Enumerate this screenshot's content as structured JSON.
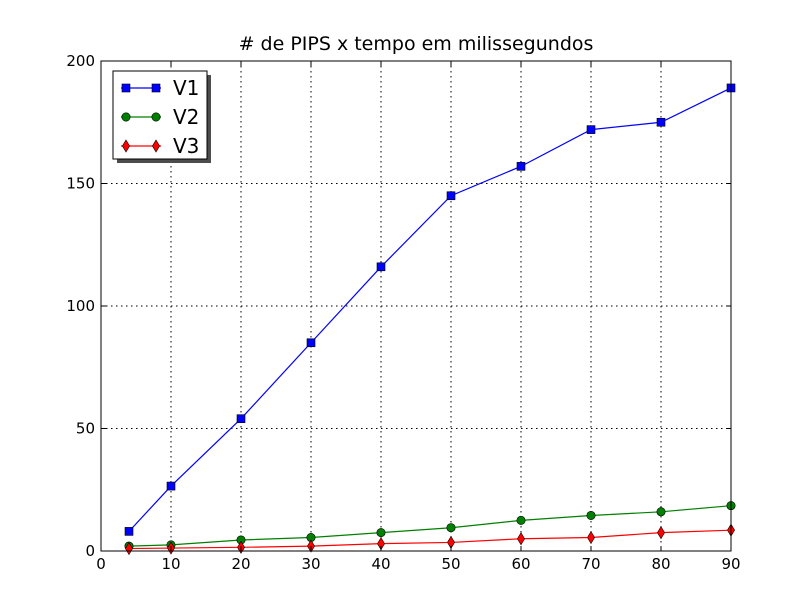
{
  "chart_data": {
    "type": "line",
    "title": "# de PIPS x tempo em milissegundos",
    "xlabel": "",
    "ylabel": "",
    "xlim": [
      0,
      90
    ],
    "ylim": [
      0,
      200
    ],
    "xticks": [
      0,
      10,
      20,
      30,
      40,
      50,
      60,
      70,
      80,
      90
    ],
    "yticks": [
      0,
      50,
      100,
      150,
      200
    ],
    "grid": true,
    "legend_position": "top-left",
    "x": [
      4,
      10,
      20,
      30,
      40,
      50,
      60,
      70,
      80,
      90
    ],
    "series": [
      {
        "name": "V1",
        "color": "#0000ff",
        "marker": "square",
        "values": [
          8,
          26.5,
          54,
          85,
          116,
          145,
          157,
          172,
          175,
          189
        ]
      },
      {
        "name": "V2",
        "color": "#008000",
        "marker": "circle",
        "values": [
          2,
          2.5,
          4.5,
          5.5,
          7.5,
          9.5,
          12.5,
          14.5,
          16,
          18.5
        ]
      },
      {
        "name": "V3",
        "color": "#ff0000",
        "marker": "diamond",
        "values": [
          1,
          1.2,
          1.5,
          2,
          3,
          3.5,
          5,
          5.5,
          7.5,
          8.5
        ]
      }
    ]
  }
}
